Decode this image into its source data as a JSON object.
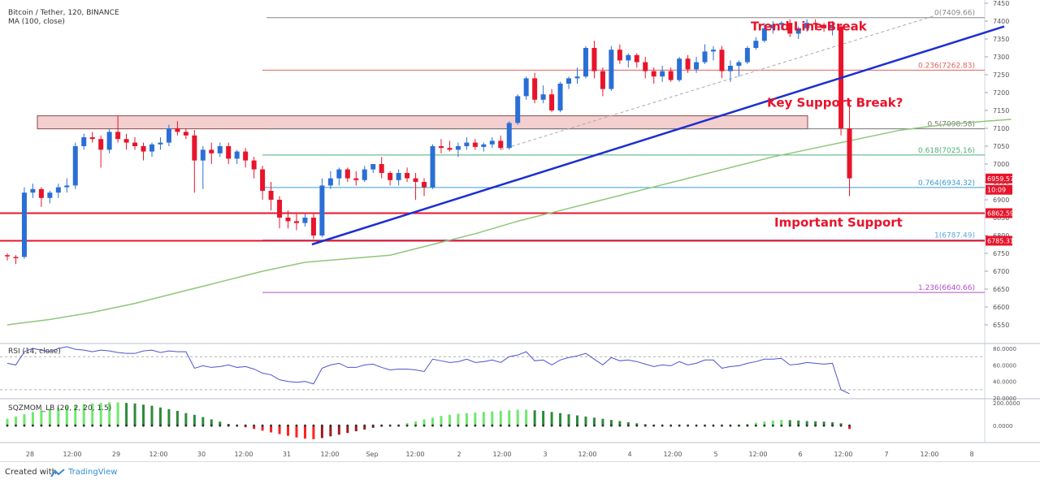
{
  "legend": {
    "symbol_line": "Bitcoin / Tether, 120, BINANCE",
    "ma_line": "MA (100, close)",
    "rsi_label": "RSI (14, close)",
    "sqz_label": "SQZMOM_LB (20, 2, 20, 1.5)"
  },
  "footer": {
    "created_with": "Created with",
    "brand": "TradingView"
  },
  "colors": {
    "up": "#2a6fd6",
    "down": "#e8142b",
    "ma": "#8fc67a",
    "trend": "#1c2fd1",
    "support": "#e8142b",
    "zone_fill": "#f4cfcf",
    "rsi": "#4a55cc",
    "mom_bright_green": "#6ee86e",
    "mom_dark_green": "#2d8a3c",
    "mom_bright_red": "#ff2020",
    "mom_dark_red": "#9e1b1b",
    "annotation": "#e8142b"
  },
  "annotations": {
    "trend_break": "Trend Line Break",
    "key_support": "Key Support Break?",
    "important_support": "Important Support"
  },
  "chart_data": [
    {
      "type": "candlestick",
      "title": "Bitcoin / Tether, 120, BINANCE",
      "ylim": [
        6500,
        7450
      ],
      "y_ticks": [
        6550,
        6600,
        6650,
        6700,
        6750,
        6800,
        6850,
        6900,
        6950,
        7000,
        7050,
        7100,
        7150,
        7200,
        7250,
        7300,
        7350,
        7400,
        7450
      ],
      "x_labels": [
        "28",
        "12:00",
        "29",
        "12:00",
        "30",
        "12:00",
        "31",
        "12:00",
        "Sep",
        "12:00",
        "2",
        "12:00",
        "3",
        "12:00",
        "4",
        "12:00",
        "5",
        "12:00",
        "6",
        "12:00",
        "7",
        "12:00",
        "8"
      ],
      "candles": [
        [
          6745,
          6750,
          6730,
          6742
        ],
        [
          6740,
          6745,
          6720,
          6738
        ],
        [
          6740,
          6935,
          6735,
          6920
        ],
        [
          6920,
          6945,
          6905,
          6930
        ],
        [
          6930,
          6935,
          6880,
          6905
        ],
        [
          6905,
          6925,
          6890,
          6920
        ],
        [
          6920,
          6945,
          6905,
          6935
        ],
        [
          6935,
          6960,
          6920,
          6940
        ],
        [
          6940,
          7060,
          6930,
          7050
        ],
        [
          7050,
          7085,
          7040,
          7075
        ],
        [
          7075,
          7090,
          7060,
          7070
        ],
        [
          7070,
          7080,
          6990,
          7040
        ],
        [
          7040,
          7100,
          7030,
          7090
        ],
        [
          7090,
          7135,
          7060,
          7070
        ],
        [
          7070,
          7085,
          7040,
          7060
        ],
        [
          7060,
          7075,
          7040,
          7050
        ],
        [
          7050,
          7060,
          7010,
          7035
        ],
        [
          7035,
          7060,
          7020,
          7055
        ],
        [
          7055,
          7075,
          7040,
          7060
        ],
        [
          7060,
          7110,
          7050,
          7100
        ],
        [
          7100,
          7120,
          7080,
          7090
        ],
        [
          7090,
          7100,
          7070,
          7080
        ],
        [
          7080,
          7095,
          6920,
          7010
        ],
        [
          7010,
          7050,
          6930,
          7040
        ],
        [
          7040,
          7060,
          7000,
          7030
        ],
        [
          7030,
          7060,
          7020,
          7050
        ],
        [
          7050,
          7060,
          7000,
          7015
        ],
        [
          7015,
          7040,
          7000,
          7035
        ],
        [
          7035,
          7045,
          6990,
          7010
        ],
        [
          7010,
          7020,
          6960,
          6985
        ],
        [
          6985,
          6995,
          6900,
          6925
        ],
        [
          6925,
          6950,
          6870,
          6900
        ],
        [
          6900,
          6910,
          6820,
          6850
        ],
        [
          6850,
          6870,
          6820,
          6840
        ],
        [
          6840,
          6860,
          6815,
          6835
        ],
        [
          6835,
          6860,
          6825,
          6850
        ],
        [
          6850,
          6860,
          6790,
          6800
        ],
        [
          6800,
          6960,
          6795,
          6940
        ],
        [
          6940,
          6980,
          6930,
          6960
        ],
        [
          6960,
          6990,
          6940,
          6985
        ],
        [
          6985,
          6990,
          6950,
          6960
        ],
        [
          6960,
          6980,
          6940,
          6955
        ],
        [
          6955,
          6995,
          6950,
          6985
        ],
        [
          6985,
          7000,
          6975,
          7000
        ],
        [
          7000,
          7020,
          6960,
          6975
        ],
        [
          6975,
          6980,
          6940,
          6955
        ],
        [
          6955,
          6985,
          6940,
          6975
        ],
        [
          6975,
          6990,
          6950,
          6960
        ],
        [
          6960,
          6975,
          6900,
          6950
        ],
        [
          6950,
          6960,
          6910,
          6935
        ],
        [
          6935,
          7055,
          6930,
          7050
        ],
        [
          7050,
          7070,
          7030,
          7045
        ],
        [
          7045,
          7065,
          7035,
          7040
        ],
        [
          7040,
          7060,
          7020,
          7050
        ],
        [
          7050,
          7075,
          7040,
          7060
        ],
        [
          7060,
          7070,
          7040,
          7048
        ],
        [
          7048,
          7060,
          7035,
          7055
        ],
        [
          7055,
          7075,
          7045,
          7065
        ],
        [
          7065,
          7080,
          7040,
          7045
        ],
        [
          7045,
          7120,
          7040,
          7115
        ],
        [
          7115,
          7195,
          7110,
          7190
        ],
        [
          7190,
          7245,
          7180,
          7240
        ],
        [
          7240,
          7255,
          7170,
          7180
        ],
        [
          7180,
          7220,
          7170,
          7195
        ],
        [
          7195,
          7210,
          7145,
          7150
        ],
        [
          7150,
          7230,
          7145,
          7225
        ],
        [
          7225,
          7245,
          7210,
          7240
        ],
        [
          7240,
          7270,
          7225,
          7245
        ],
        [
          7245,
          7330,
          7240,
          7325
        ],
        [
          7325,
          7345,
          7240,
          7260
        ],
        [
          7260,
          7270,
          7190,
          7210
        ],
        [
          7210,
          7330,
          7205,
          7320
        ],
        [
          7320,
          7335,
          7280,
          7290
        ],
        [
          7290,
          7310,
          7270,
          7305
        ],
        [
          7305,
          7310,
          7270,
          7285
        ],
        [
          7285,
          7300,
          7240,
          7260
        ],
        [
          7260,
          7270,
          7225,
          7245
        ],
        [
          7245,
          7275,
          7230,
          7260
        ],
        [
          7260,
          7270,
          7230,
          7235
        ],
        [
          7235,
          7300,
          7230,
          7295
        ],
        [
          7295,
          7305,
          7255,
          7265
        ],
        [
          7265,
          7300,
          7255,
          7285
        ],
        [
          7285,
          7335,
          7280,
          7315
        ],
        [
          7315,
          7330,
          7290,
          7320
        ],
        [
          7320,
          7330,
          7240,
          7260
        ],
        [
          7260,
          7290,
          7230,
          7275
        ],
        [
          7275,
          7290,
          7245,
          7285
        ],
        [
          7285,
          7330,
          7280,
          7325
        ],
        [
          7325,
          7355,
          7320,
          7345
        ],
        [
          7345,
          7395,
          7340,
          7380
        ],
        [
          7380,
          7400,
          7365,
          7390
        ],
        [
          7390,
          7400,
          7375,
          7395
        ],
        [
          7395,
          7405,
          7355,
          7365
        ],
        [
          7365,
          7385,
          7350,
          7380
        ],
        [
          7380,
          7405,
          7370,
          7395
        ],
        [
          7395,
          7405,
          7375,
          7390
        ],
        [
          7390,
          7395,
          7370,
          7380
        ],
        [
          7380,
          7400,
          7360,
          7385
        ],
        [
          7385,
          7390,
          7080,
          7100
        ],
        [
          7100,
          7180,
          6910,
          6960
        ]
      ],
      "ma100": [
        [
          0,
          6550
        ],
        [
          5,
          6565
        ],
        [
          10,
          6585
        ],
        [
          15,
          6610
        ],
        [
          20,
          6640
        ],
        [
          25,
          6670
        ],
        [
          30,
          6700
        ],
        [
          35,
          6725
        ],
        [
          40,
          6735
        ],
        [
          45,
          6745
        ],
        [
          50,
          6775
        ],
        [
          55,
          6805
        ],
        [
          60,
          6840
        ],
        [
          65,
          6870
        ],
        [
          70,
          6900
        ],
        [
          75,
          6930
        ],
        [
          80,
          6960
        ],
        [
          85,
          6990
        ],
        [
          90,
          7020
        ],
        [
          95,
          7045
        ],
        [
          100,
          7070
        ],
        [
          105,
          7095
        ],
        [
          110,
          7110
        ],
        [
          115,
          7120
        ],
        [
          118,
          7125
        ]
      ],
      "horizontal_levels": [
        {
          "label": "0(7409.66)",
          "value": 7409.66,
          "color": "#888888"
        },
        {
          "label": "0.236(7262.83)",
          "value": 7262.83,
          "color": "#e06060"
        },
        {
          "label": "0.5(7098.58)",
          "value": 7098.58,
          "color": "#777777"
        },
        {
          "label": "0.618(7025.16)",
          "value": 7025.16,
          "color": "#4caf76"
        },
        {
          "label": "0.764(6934.32)",
          "value": 6934.32,
          "color": "#3a9ad9"
        },
        {
          "label": "1(6787.49)",
          "value": 6787.49,
          "color": "#5aa8e0"
        },
        {
          "label": "1.236(6640.66)",
          "value": 6640.66,
          "color": "#b34fc9"
        }
      ],
      "support_lines": [
        6862.59,
        6785.31
      ],
      "support_zone": [
        7098.58,
        7135
      ],
      "trend_line": [
        [
          36,
          6775
        ],
        [
          117,
          7385
        ]
      ],
      "dashed_channel": [
        [
          58,
          7040
        ],
        [
          109,
          7415
        ]
      ],
      "price_tags": [
        {
          "text": "6959.57",
          "value": 6959.57
        },
        {
          "text": "10:09",
          "value": 6928
        },
        {
          "text": "6862.59",
          "value": 6862.59
        },
        {
          "text": "6785.31",
          "value": 6785.31
        }
      ]
    },
    {
      "type": "line",
      "title": "RSI (14, close)",
      "ylim": [
        20,
        85
      ],
      "y_ticks": [
        "80.0000",
        "60.0000",
        "40.0000",
        "20.0000"
      ],
      "y_tick_values": [
        80,
        60,
        40,
        20
      ],
      "values": [
        62,
        60,
        76,
        80,
        78,
        76,
        80,
        82,
        79,
        78,
        76,
        78,
        77,
        75,
        74,
        74,
        77,
        78,
        75,
        77,
        76,
        76,
        56,
        59,
        57,
        58,
        60,
        57,
        58,
        55,
        50,
        48,
        42,
        40,
        39,
        40,
        37,
        56,
        60,
        62,
        57,
        57,
        60,
        61,
        57,
        54,
        55,
        55,
        54,
        52,
        67,
        65,
        63,
        64,
        67,
        63,
        64,
        66,
        63,
        70,
        72,
        76,
        65,
        66,
        60,
        66,
        69,
        71,
        74,
        67,
        60,
        69,
        65,
        66,
        64,
        61,
        58,
        60,
        59,
        64,
        60,
        62,
        66,
        66,
        56,
        58,
        59,
        62,
        64,
        67,
        67,
        68,
        60,
        61,
        63,
        62,
        61,
        62,
        30,
        25
      ]
    },
    {
      "type": "bar",
      "title": "SQZMOM_LB (20, 2, 20, 1.5)",
      "ylim": [
        -150,
        230
      ],
      "y_ticks": [
        "200.0000",
        "0.0000"
      ],
      "y_tick_values": [
        200,
        0
      ],
      "values": [
        60,
        80,
        100,
        120,
        135,
        150,
        160,
        170,
        180,
        190,
        195,
        200,
        205,
        205,
        200,
        195,
        185,
        175,
        160,
        145,
        130,
        110,
        95,
        75,
        55,
        35,
        15,
        0,
        -15,
        -30,
        -45,
        -60,
        -75,
        -90,
        -105,
        -115,
        -120,
        -110,
        -95,
        -80,
        -65,
        -50,
        -35,
        -20,
        -8,
        0,
        8,
        22,
        38,
        55,
        70,
        85,
        95,
        105,
        110,
        115,
        120,
        125,
        130,
        135,
        140,
        140,
        135,
        130,
        120,
        110,
        100,
        90,
        80,
        70,
        60,
        50,
        40,
        30,
        20,
        12,
        6,
        2,
        0,
        0,
        0,
        0,
        0,
        0,
        0,
        0,
        5,
        15,
        25,
        35,
        45,
        50,
        48,
        45,
        40,
        38,
        35,
        30,
        20,
        -30
      ],
      "zero_dot_color": "#333333"
    }
  ]
}
